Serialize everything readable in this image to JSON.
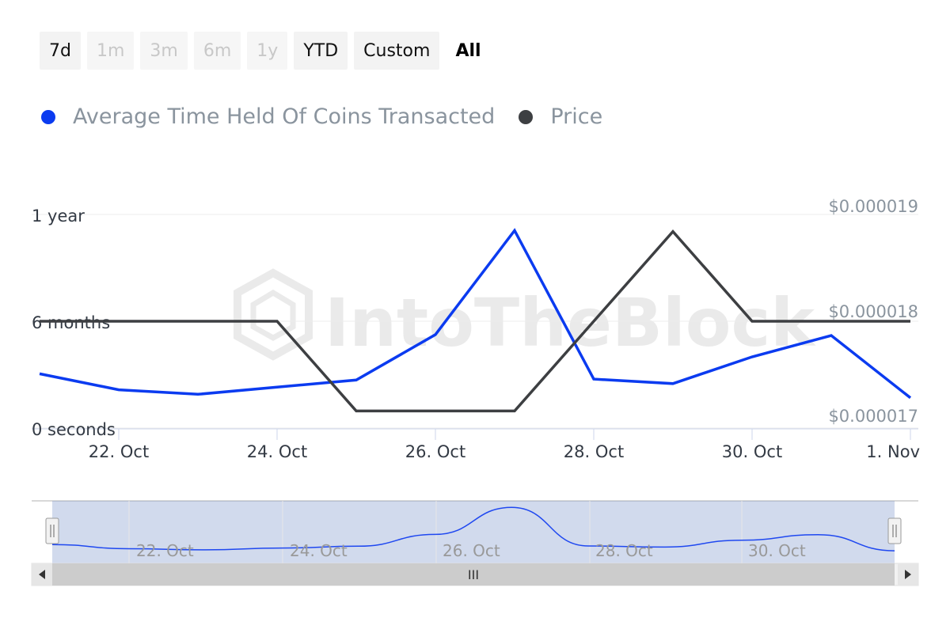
{
  "range_buttons": [
    {
      "label": "7d",
      "state": "enabled"
    },
    {
      "label": "1m",
      "state": "disabled"
    },
    {
      "label": "3m",
      "state": "disabled"
    },
    {
      "label": "6m",
      "state": "disabled"
    },
    {
      "label": "1y",
      "state": "disabled"
    },
    {
      "label": "YTD",
      "state": "enabled"
    },
    {
      "label": "Custom",
      "state": "enabled"
    },
    {
      "label": "All",
      "state": "active"
    }
  ],
  "legend": [
    {
      "label": "Average Time Held Of Coins Transacted",
      "color": "#0b3bf0"
    },
    {
      "label": "Price",
      "color": "#3d3f42"
    }
  ],
  "watermark": "IntoTheBlock",
  "chart_data": {
    "type": "line",
    "x": [
      "21. Oct",
      "22. Oct",
      "23. Oct",
      "24. Oct",
      "25. Oct",
      "26. Oct",
      "27. Oct",
      "28. Oct",
      "29. Oct",
      "30. Oct",
      "31. Oct",
      "1. Nov"
    ],
    "x_tick_labels": [
      "22. Oct",
      "24. Oct",
      "26. Oct",
      "28. Oct",
      "30. Oct",
      "1. Nov"
    ],
    "series": [
      {
        "name": "Average Time Held Of Coins Transacted",
        "axis": "left",
        "unit": "months",
        "values": [
          3.05,
          2.15,
          1.9,
          2.3,
          2.7,
          5.25,
          11.1,
          2.75,
          2.5,
          4.0,
          5.2,
          1.7
        ]
      },
      {
        "name": "Price",
        "axis": "right",
        "unit": "USD",
        "values": [
          1.8e-05,
          1.8e-05,
          1.8e-05,
          1.8e-05,
          1.716e-05,
          1.716e-05,
          1.716e-05,
          1.8e-05,
          1.884e-05,
          1.8e-05,
          1.8e-05,
          1.8e-05
        ]
      }
    ],
    "y_left": {
      "ticks": [
        "0 seconds",
        "6 months",
        "1 year"
      ],
      "range": [
        0,
        12
      ]
    },
    "y_right": {
      "ticks": [
        "$0.000017",
        "$0.000018",
        "$0.000019"
      ],
      "range": [
        1.7e-05,
        1.9e-05
      ]
    },
    "navigator": {
      "tick_labels": [
        "22. Oct",
        "24. Oct",
        "26. Oct",
        "28. Oct",
        "30. Oct"
      ],
      "scroll_grip": "III"
    }
  }
}
